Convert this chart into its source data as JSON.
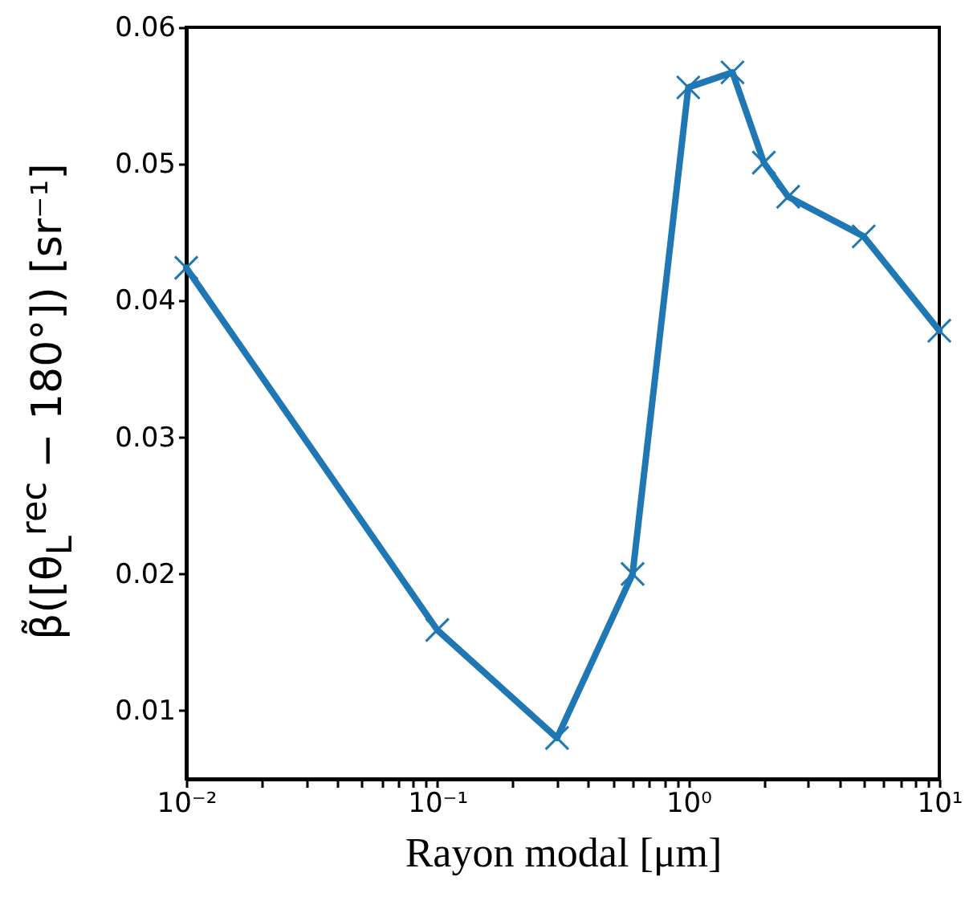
{
  "chart_data": {
    "type": "line",
    "xlabel": "Rayon modal [μm]",
    "ylabel": "β̃([θ$_{L}$$^{rec}$ − 180°]) [sr⁻¹]",
    "log": "x",
    "x": [
      0.01,
      0.1,
      0.3,
      0.6,
      1,
      1.5,
      2,
      2.5,
      5,
      10
    ],
    "series": [
      {
        "color": "#1f77b4",
        "values": [
          0.0424,
          0.0159,
          0.008,
          0.02,
          0.0556,
          0.0567,
          0.0501,
          0.0476,
          0.0447,
          0.0378
        ]
      }
    ],
    "xlim": [
      0.01,
      10
    ],
    "ylim": [
      0.005,
      0.06
    ],
    "xticks": [
      {
        "value": 0.01,
        "label": "10⁻²"
      },
      {
        "value": 0.02,
        "label": null
      },
      {
        "value": 0.03,
        "label": null
      },
      {
        "value": 0.04,
        "label": null
      },
      {
        "value": 0.05,
        "label": null
      },
      {
        "value": 0.06,
        "label": null
      },
      {
        "value": 0.07,
        "label": null
      },
      {
        "value": 0.08,
        "label": null
      },
      {
        "value": 0.09,
        "label": null
      },
      {
        "value": 0.1,
        "label": "10⁻¹"
      },
      {
        "value": 0.2,
        "label": null
      },
      {
        "value": 0.3,
        "label": null
      },
      {
        "value": 0.4,
        "label": null
      },
      {
        "value": 0.5,
        "label": null
      },
      {
        "value": 0.6,
        "label": null
      },
      {
        "value": 0.7,
        "label": null
      },
      {
        "value": 0.8,
        "label": null
      },
      {
        "value": 0.9,
        "label": null
      },
      {
        "value": 1,
        "label": "10⁰"
      },
      {
        "value": 2,
        "label": null
      },
      {
        "value": 3,
        "label": null
      },
      {
        "value": 4,
        "label": null
      },
      {
        "value": 5,
        "label": null
      },
      {
        "value": 6,
        "label": null
      },
      {
        "value": 7,
        "label": null
      },
      {
        "value": 8,
        "label": null
      },
      {
        "value": 9,
        "label": null
      },
      {
        "value": 10,
        "label": "10¹"
      }
    ],
    "yticks": [
      0.01,
      0.02,
      0.03,
      0.04,
      0.05,
      0.06
    ],
    "marker": "cross",
    "line_style": "solid",
    "grid": false
  }
}
